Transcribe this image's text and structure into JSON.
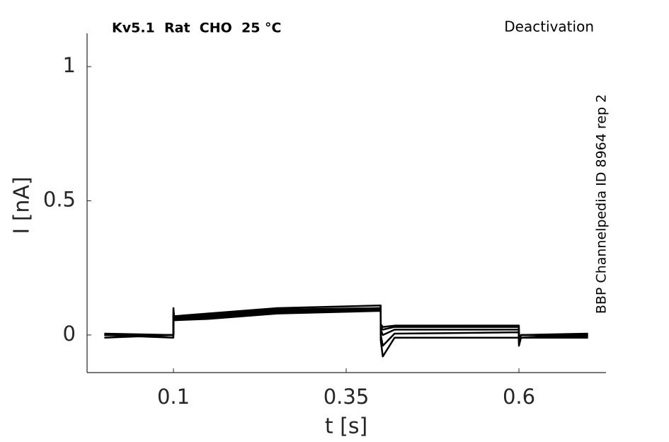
{
  "chart_data": {
    "type": "line",
    "title": "Kv5.1  Rat  CHO  25 °C",
    "annotation": "Deactivation",
    "side_label": "BBP Channelpedia ID 8964 rep 2",
    "x_label": "t [s]",
    "y_label": "I [nA]",
    "x": [
      0,
      0.0999,
      0.1,
      0.101,
      0.15,
      0.25,
      0.3999,
      0.4,
      0.403,
      0.42,
      0.5999,
      0.6,
      0.603,
      0.7
    ],
    "series": [
      {
        "color": "#000000",
        "values": [
          0,
          0,
          0.09,
          0.07,
          0.08,
          0.1,
          0.11,
          0.04,
          0.03,
          0.035,
          0.035,
          -0.01,
          0.0,
          0.0
        ]
      },
      {
        "color": "#000000",
        "values": [
          0.0,
          -0.01,
          0.08,
          0.06,
          0.07,
          0.09,
          0.1,
          0.02,
          0.0,
          0.02,
          0.02,
          -0.02,
          0.0,
          -0.005
        ]
      },
      {
        "color": "#000000",
        "values": [
          -0.01,
          0.0,
          0.07,
          0.06,
          0.065,
          0.085,
          0.095,
          0.0,
          -0.04,
          0.005,
          0.01,
          -0.03,
          -0.01,
          -0.01
        ]
      },
      {
        "color": "#000000",
        "values": [
          0.0,
          0.0,
          0.08,
          0.055,
          0.06,
          0.08,
          0.09,
          -0.02,
          -0.08,
          -0.01,
          -0.01,
          -0.04,
          -0.01,
          0.0
        ]
      },
      {
        "color": "#000000",
        "values": [
          0.005,
          0.0,
          0.1,
          0.065,
          0.075,
          0.095,
          0.1,
          0.03,
          0.02,
          0.03,
          0.03,
          -0.02,
          0.0,
          0.005
        ]
      }
    ],
    "xlim": [
      -0.025,
      0.726
    ],
    "ylim": [
      -0.14,
      1.124
    ],
    "xticks": [
      0.1,
      0.35,
      0.6
    ],
    "yticks": [
      0,
      0.5,
      1
    ],
    "grid": false
  }
}
